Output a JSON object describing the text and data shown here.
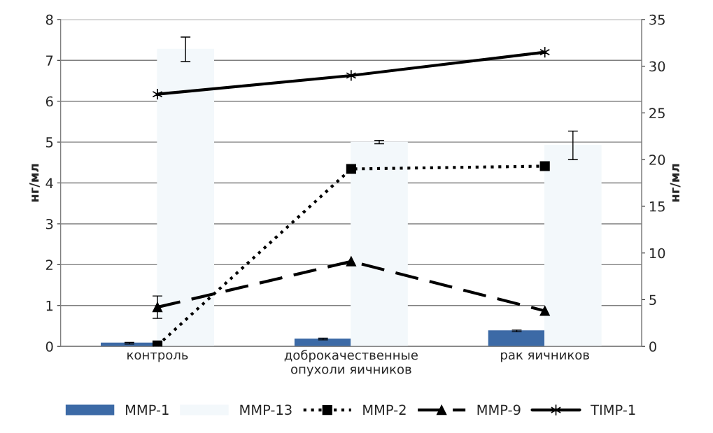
{
  "chart_data": {
    "type": "bar",
    "ylabel": "нг/мл",
    "y2label": "нг/мл",
    "categories": [
      "контроль",
      "доброкачественные\nопухоли яичников",
      "рак яичников"
    ],
    "series": [
      {
        "name": "MMP-1",
        "color": "#3c6aa6",
        "values": [
          0.08,
          0.18,
          0.38
        ],
        "errors": [
          0.02,
          0.02,
          0.02
        ]
      },
      {
        "name": "MMP-13",
        "color": "#f3f8fb",
        "values": [
          7.27,
          5.0,
          4.92
        ],
        "errors": [
          0.3,
          0.04,
          0.35
        ]
      },
      {
        "name": "MMP-2",
        "type": "line",
        "axis": "y2",
        "color": "#000000",
        "marker": "square",
        "line_style": "dotted",
        "values": [
          0.1,
          19.0,
          19.3
        ]
      },
      {
        "name": "MMP-9",
        "type": "line",
        "axis": "y2",
        "color": "#000000",
        "marker": "triangle",
        "line_style": "dashed",
        "values": [
          4.2,
          9.1,
          3.8
        ],
        "errors": [
          1.2,
          null,
          null
        ]
      },
      {
        "name": "TIMP-1",
        "type": "line",
        "axis": "y2",
        "color": "#000000",
        "marker": "cross",
        "line_style": "solid",
        "values": [
          27.0,
          29.0,
          31.5
        ]
      }
    ],
    "ylim": [
      0,
      8
    ],
    "yticks": [
      0,
      1,
      2,
      3,
      4,
      5,
      6,
      7,
      8
    ],
    "y2lim": [
      0,
      35
    ],
    "y2ticks": [
      0,
      5,
      10,
      15,
      20,
      25,
      30,
      35
    ],
    "grid": "y",
    "legend": "bottom"
  }
}
